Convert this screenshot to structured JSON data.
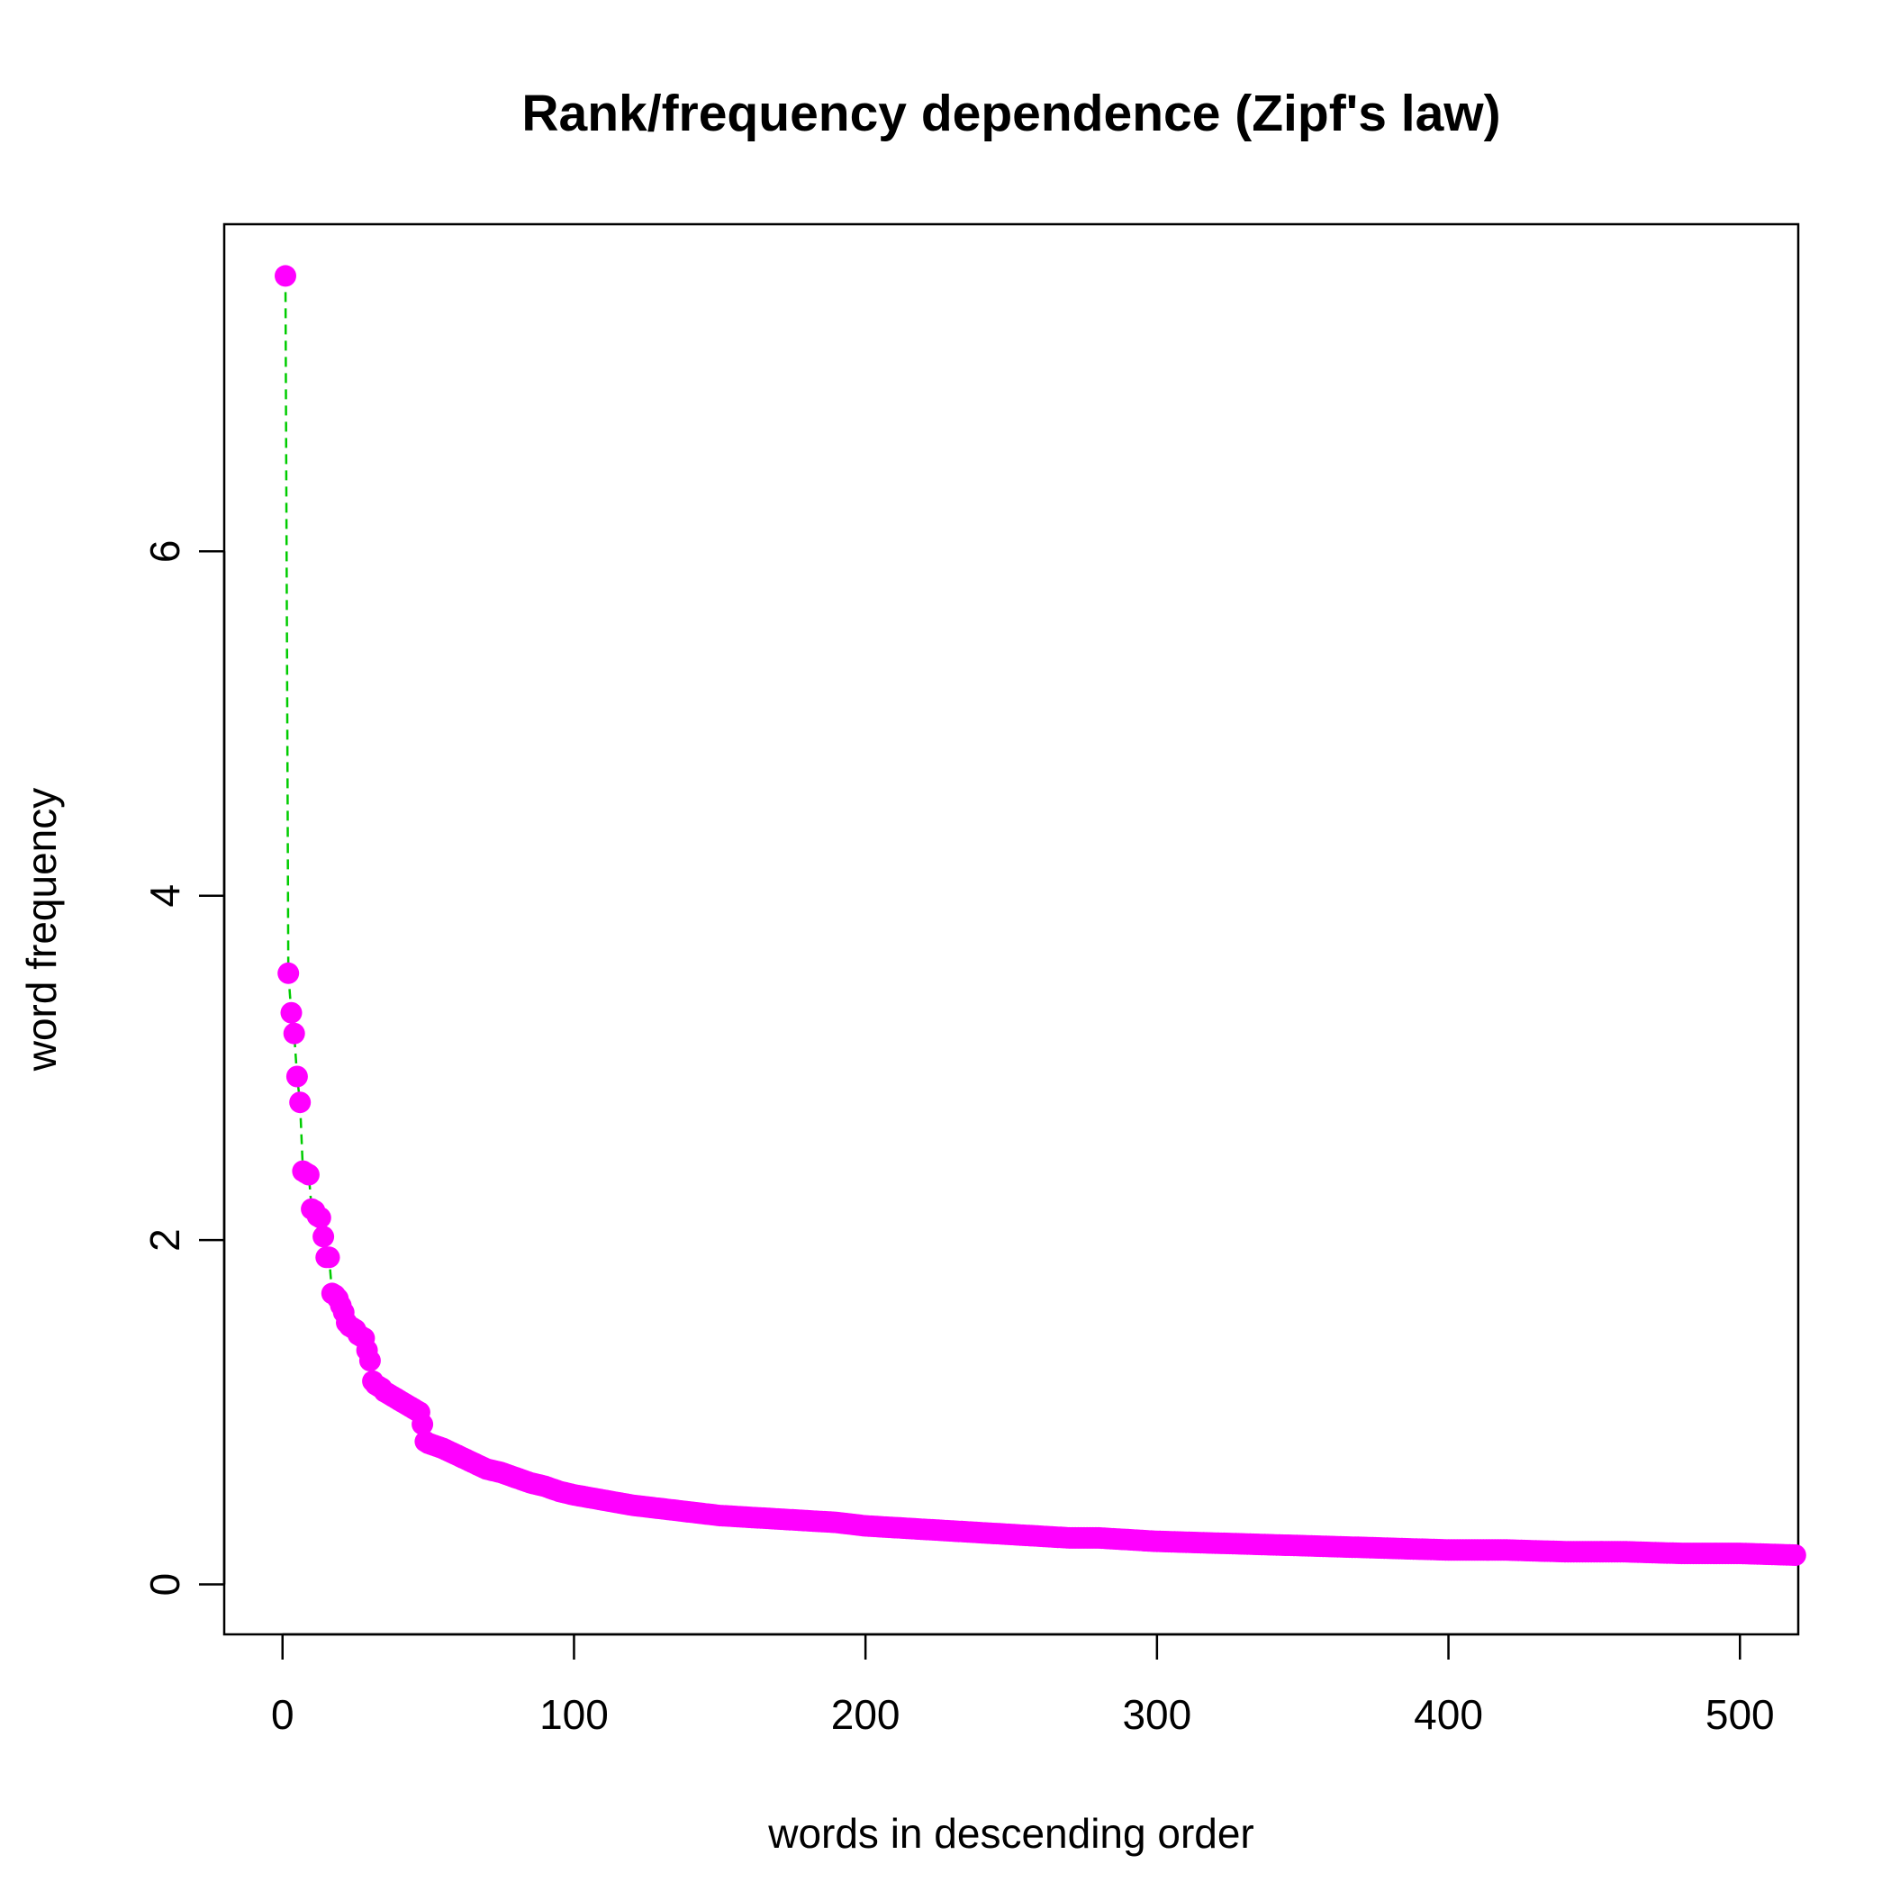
{
  "chart_data": {
    "type": "scatter",
    "title": "Rank/frequency dependence (Zipf's law)",
    "xlabel": "words in descending order",
    "ylabel": "word frequency",
    "xlim": [
      -20,
      520
    ],
    "ylim": [
      -0.29,
      7.9
    ],
    "xticks": [
      "0",
      "100",
      "200",
      "300",
      "400",
      "500"
    ],
    "yticks": [
      "0",
      "2",
      "4",
      "6"
    ],
    "grid": false,
    "legend": "none",
    "point_color": "#ff00ff",
    "line_color": "#00cc00",
    "line_style": "dashed",
    "points": [
      [
        1,
        7.6
      ],
      [
        2,
        3.55
      ],
      [
        3,
        3.32
      ],
      [
        4,
        3.2
      ],
      [
        5,
        2.95
      ],
      [
        6,
        2.8
      ],
      [
        7,
        2.4
      ],
      [
        8,
        2.39
      ],
      [
        9,
        2.38
      ],
      [
        10,
        2.18
      ],
      [
        11,
        2.17
      ],
      [
        12,
        2.14
      ],
      [
        13,
        2.13
      ],
      [
        14,
        2.02
      ],
      [
        15,
        1.9
      ],
      [
        16,
        1.9
      ],
      [
        17,
        1.69
      ],
      [
        18,
        1.68
      ],
      [
        19,
        1.66
      ],
      [
        20,
        1.62
      ],
      [
        21,
        1.58
      ],
      [
        22,
        1.52
      ],
      [
        23,
        1.5
      ],
      [
        24,
        1.49
      ],
      [
        25,
        1.48
      ],
      [
        26,
        1.45
      ],
      [
        27,
        1.44
      ],
      [
        28,
        1.43
      ],
      [
        29,
        1.36
      ],
      [
        30,
        1.3
      ],
      [
        31,
        1.18
      ],
      [
        32,
        1.16
      ],
      [
        33,
        1.15
      ],
      [
        34,
        1.14
      ],
      [
        35,
        1.12
      ],
      [
        36,
        1.11
      ],
      [
        37,
        1.1
      ],
      [
        38,
        1.09
      ],
      [
        39,
        1.08
      ],
      [
        40,
        1.07
      ],
      [
        41,
        1.06
      ],
      [
        42,
        1.05
      ],
      [
        43,
        1.04
      ],
      [
        44,
        1.03
      ],
      [
        45,
        1.02
      ],
      [
        46,
        1.01
      ],
      [
        47,
        1.0
      ],
      [
        48,
        0.93
      ],
      [
        49,
        0.83
      ],
      [
        50,
        0.82
      ],
      [
        55,
        0.79
      ],
      [
        60,
        0.75
      ],
      [
        65,
        0.71
      ],
      [
        70,
        0.67
      ],
      [
        75,
        0.65
      ],
      [
        80,
        0.62
      ],
      [
        85,
        0.59
      ],
      [
        90,
        0.57
      ],
      [
        95,
        0.54
      ],
      [
        100,
        0.52
      ],
      [
        110,
        0.49
      ],
      [
        120,
        0.46
      ],
      [
        130,
        0.44
      ],
      [
        140,
        0.42
      ],
      [
        150,
        0.4
      ],
      [
        160,
        0.39
      ],
      [
        170,
        0.38
      ],
      [
        180,
        0.37
      ],
      [
        190,
        0.36
      ],
      [
        200,
        0.34
      ],
      [
        210,
        0.33
      ],
      [
        220,
        0.32
      ],
      [
        230,
        0.31
      ],
      [
        240,
        0.3
      ],
      [
        250,
        0.29
      ],
      [
        260,
        0.28
      ],
      [
        270,
        0.27
      ],
      [
        280,
        0.27
      ],
      [
        290,
        0.26
      ],
      [
        300,
        0.25
      ],
      [
        320,
        0.24
      ],
      [
        340,
        0.23
      ],
      [
        360,
        0.22
      ],
      [
        380,
        0.21
      ],
      [
        400,
        0.2
      ],
      [
        420,
        0.2
      ],
      [
        440,
        0.19
      ],
      [
        460,
        0.19
      ],
      [
        480,
        0.18
      ],
      [
        500,
        0.18
      ],
      [
        519,
        0.17
      ]
    ]
  }
}
